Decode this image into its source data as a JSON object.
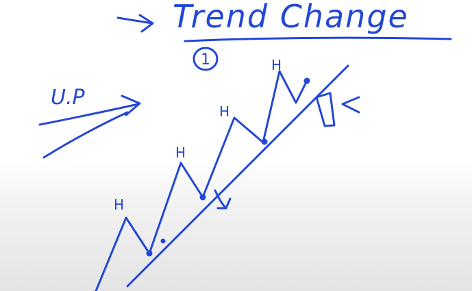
{
  "colors": {
    "ink": "#2347d6"
  },
  "heading": {
    "title": "Trend Change",
    "number": "1"
  },
  "trend_label": "U.P",
  "peak_labels": [
    "H",
    "H",
    "H",
    "H"
  ]
}
